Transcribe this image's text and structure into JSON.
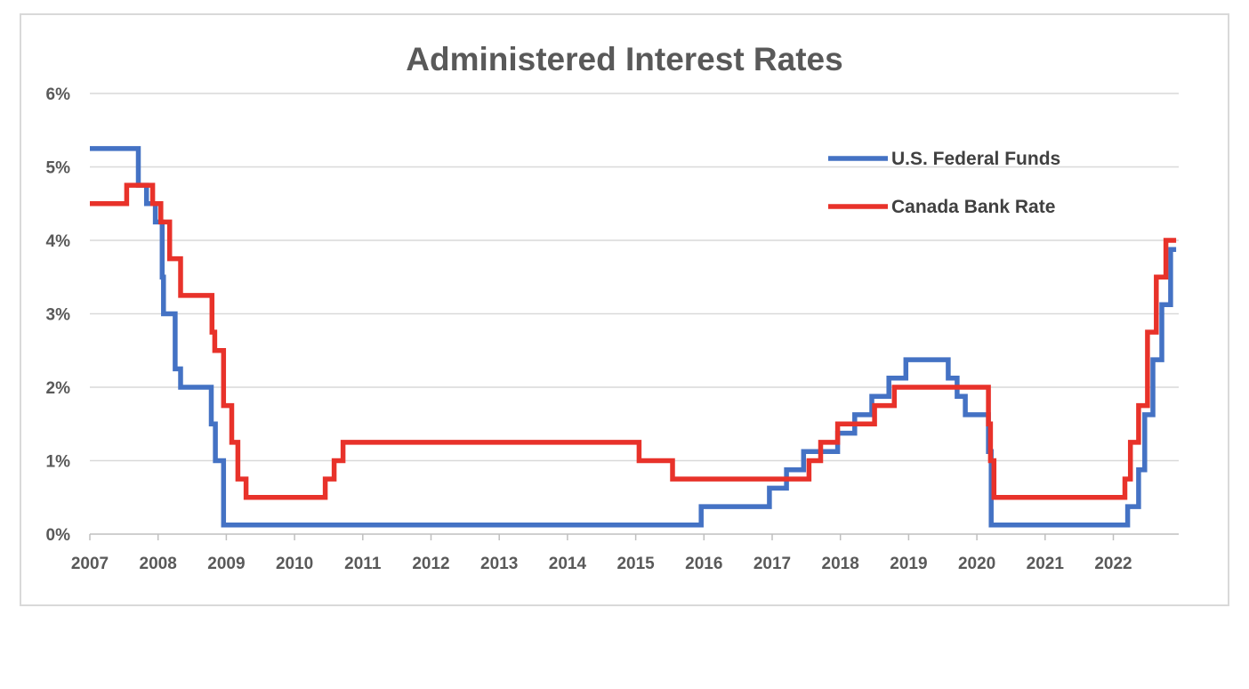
{
  "chart_data": {
    "type": "line",
    "title": "Administered Interest Rates",
    "xlabel": "",
    "ylabel": "",
    "x_ticks": [
      "2007",
      "2008",
      "2009",
      "2010",
      "2011",
      "2012",
      "2013",
      "2014",
      "2015",
      "2016",
      "2017",
      "2018",
      "2019",
      "2020",
      "2021",
      "2022"
    ],
    "y_ticks": [
      "0%",
      "1%",
      "2%",
      "3%",
      "4%",
      "5%",
      "6%"
    ],
    "xlim": [
      2007,
      2022.92
    ],
    "ylim": [
      0,
      6
    ],
    "grid": "horizontal",
    "legend_position": "top-right",
    "series": [
      {
        "name": "U.S. Federal Funds",
        "color": "#4472C4",
        "step": true,
        "points": [
          [
            2007.0,
            5.25
          ],
          [
            2007.71,
            4.75
          ],
          [
            2007.83,
            4.5
          ],
          [
            2007.96,
            4.25
          ],
          [
            2008.06,
            3.5
          ],
          [
            2008.08,
            3.0
          ],
          [
            2008.25,
            2.25
          ],
          [
            2008.33,
            2.0
          ],
          [
            2008.78,
            1.5
          ],
          [
            2008.84,
            1.0
          ],
          [
            2008.96,
            0.125
          ],
          [
            2015.96,
            0.375
          ],
          [
            2016.96,
            0.625
          ],
          [
            2017.21,
            0.875
          ],
          [
            2017.46,
            1.125
          ],
          [
            2017.96,
            1.375
          ],
          [
            2018.21,
            1.625
          ],
          [
            2018.46,
            1.875
          ],
          [
            2018.71,
            2.125
          ],
          [
            2018.96,
            2.375
          ],
          [
            2019.58,
            2.125
          ],
          [
            2019.71,
            1.875
          ],
          [
            2019.83,
            1.625
          ],
          [
            2020.17,
            1.125
          ],
          [
            2020.21,
            0.125
          ],
          [
            2022.21,
            0.375
          ],
          [
            2022.37,
            0.875
          ],
          [
            2022.46,
            1.625
          ],
          [
            2022.58,
            2.375
          ],
          [
            2022.71,
            3.125
          ],
          [
            2022.84,
            3.875
          ],
          [
            2022.92,
            3.875
          ]
        ]
      },
      {
        "name": "Canada Bank Rate",
        "color": "#E8322A",
        "step": true,
        "points": [
          [
            2007.0,
            4.5
          ],
          [
            2007.54,
            4.75
          ],
          [
            2007.92,
            4.5
          ],
          [
            2008.04,
            4.25
          ],
          [
            2008.17,
            3.75
          ],
          [
            2008.33,
            3.25
          ],
          [
            2008.79,
            2.75
          ],
          [
            2008.83,
            2.5
          ],
          [
            2008.96,
            1.75
          ],
          [
            2009.08,
            1.25
          ],
          [
            2009.17,
            0.75
          ],
          [
            2009.29,
            0.5
          ],
          [
            2010.45,
            0.75
          ],
          [
            2010.58,
            1.0
          ],
          [
            2010.71,
            1.25
          ],
          [
            2015.05,
            1.0
          ],
          [
            2015.54,
            0.75
          ],
          [
            2017.54,
            1.0
          ],
          [
            2017.71,
            1.25
          ],
          [
            2017.96,
            1.5
          ],
          [
            2018.5,
            1.75
          ],
          [
            2018.79,
            2.0
          ],
          [
            2020.17,
            1.5
          ],
          [
            2020.2,
            1.0
          ],
          [
            2020.25,
            0.5
          ],
          [
            2022.17,
            0.75
          ],
          [
            2022.25,
            1.25
          ],
          [
            2022.37,
            1.75
          ],
          [
            2022.5,
            2.75
          ],
          [
            2022.63,
            3.5
          ],
          [
            2022.77,
            4.0
          ],
          [
            2022.92,
            4.0
          ]
        ]
      }
    ]
  }
}
